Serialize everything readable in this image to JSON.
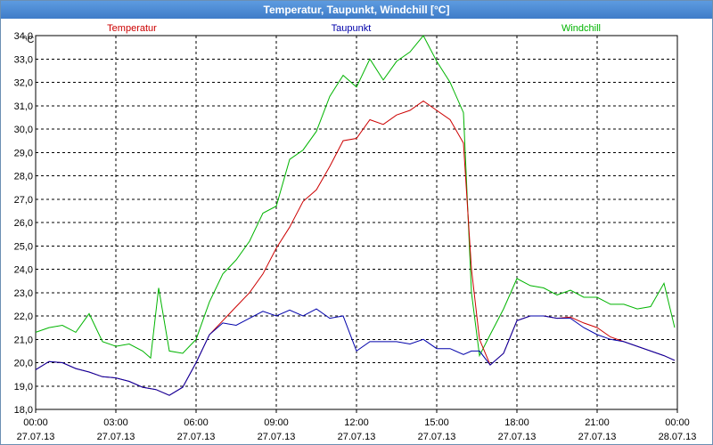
{
  "window": {
    "title": "Temperatur, Taupunkt, Windchill [°C]"
  },
  "chart_data": {
    "type": "line",
    "title": "Temperatur, Taupunkt, Windchill [°C]",
    "ylabel": "°C",
    "xlim": [
      "00:00",
      "24:00"
    ],
    "ylim": [
      18.0,
      34.0
    ],
    "grid": true,
    "legend_position": "top",
    "y_ticks": [
      "18,0",
      "19,0",
      "20,0",
      "21,0",
      "22,0",
      "23,0",
      "24,0",
      "25,0",
      "26,0",
      "27,0",
      "28,0",
      "29,0",
      "30,0",
      "31,0",
      "32,0",
      "33,0",
      "34,0"
    ],
    "x_ticks": [
      {
        "time": "00:00",
        "date": "27.07.13"
      },
      {
        "time": "03:00",
        "date": "27.07.13"
      },
      {
        "time": "06:00",
        "date": "27.07.13"
      },
      {
        "time": "09:00",
        "date": "27.07.13"
      },
      {
        "time": "12:00",
        "date": "27.07.13"
      },
      {
        "time": "15:00",
        "date": "27.07.13"
      },
      {
        "time": "18:00",
        "date": "27.07.13"
      },
      {
        "time": "21:00",
        "date": "27.07.13"
      },
      {
        "time": "00:00",
        "date": "28.07.13"
      }
    ],
    "colors": {
      "Temperatur": "#cc0000",
      "Taupunkt": "#0000aa",
      "Windchill": "#00b400"
    },
    "series": [
      {
        "name": "Temperatur",
        "x": [
          0,
          0.5,
          1.0,
          1.5,
          2.0,
          2.5,
          3.0,
          3.5,
          4.0,
          4.5,
          5.0,
          5.5,
          6.0,
          6.5,
          7.0,
          7.5,
          8.0,
          8.5,
          9.0,
          9.5,
          10.0,
          10.5,
          11.0,
          11.5,
          12.0,
          12.5,
          13.0,
          13.5,
          14.0,
          14.5,
          15.0,
          15.5,
          16.0,
          16.3,
          16.6,
          17.0,
          17.5,
          18.0,
          18.5,
          19.0,
          19.5,
          20.0,
          20.5,
          21.0,
          21.5,
          22.0,
          22.5,
          23.0,
          23.5,
          23.9
        ],
        "y": [
          19.7,
          20.05,
          20.0,
          19.75,
          19.6,
          19.4,
          19.35,
          19.2,
          18.95,
          18.85,
          18.6,
          18.95,
          20.0,
          21.2,
          21.8,
          22.4,
          23.0,
          23.8,
          24.9,
          25.8,
          26.9,
          27.4,
          28.4,
          29.5,
          29.6,
          30.4,
          30.2,
          30.6,
          30.8,
          31.2,
          30.8,
          30.4,
          29.4,
          24.0,
          21.0,
          19.9,
          20.4,
          21.8,
          22.0,
          22.0,
          21.9,
          21.95,
          21.7,
          21.5,
          21.1,
          20.9,
          20.7,
          20.5,
          20.3,
          20.1
        ],
        "values_note": "approx"
      },
      {
        "name": "Taupunkt",
        "x": [
          0,
          0.5,
          1.0,
          1.5,
          2.0,
          2.5,
          3.0,
          3.5,
          4.0,
          4.5,
          5.0,
          5.5,
          6.0,
          6.5,
          7.0,
          7.5,
          8.0,
          8.5,
          9.0,
          9.5,
          10.0,
          10.5,
          11.0,
          11.5,
          12.0,
          12.5,
          13.0,
          13.5,
          14.0,
          14.5,
          15.0,
          15.5,
          16.0,
          16.3,
          16.6,
          17.0,
          17.5,
          18.0,
          18.5,
          19.0,
          19.5,
          20.0,
          20.5,
          21.0,
          21.5,
          22.0,
          22.5,
          23.0,
          23.5,
          23.9
        ],
        "y": [
          19.7,
          20.05,
          20.0,
          19.75,
          19.6,
          19.4,
          19.35,
          19.2,
          18.95,
          18.85,
          18.6,
          18.95,
          20.0,
          21.2,
          21.7,
          21.6,
          21.9,
          22.2,
          22.0,
          22.25,
          22.0,
          22.3,
          21.9,
          22.0,
          20.5,
          20.9,
          20.9,
          20.9,
          20.8,
          21.0,
          20.6,
          20.6,
          20.35,
          20.5,
          20.5,
          19.9,
          20.4,
          21.8,
          22.0,
          22.0,
          21.9,
          21.9,
          21.5,
          21.2,
          21.0,
          20.9,
          20.7,
          20.5,
          20.3,
          20.1
        ]
      },
      {
        "name": "Windchill",
        "x": [
          0,
          0.5,
          1.0,
          1.5,
          2.0,
          2.5,
          3.0,
          3.5,
          4.0,
          4.3,
          4.6,
          5.0,
          5.5,
          6.0,
          6.5,
          7.0,
          7.5,
          8.0,
          8.5,
          9.0,
          9.5,
          10.0,
          10.5,
          11.0,
          11.5,
          12.0,
          12.5,
          13.0,
          13.5,
          14.0,
          14.5,
          15.0,
          15.5,
          16.0,
          16.3,
          16.6,
          17.0,
          17.5,
          18.0,
          18.5,
          19.0,
          19.5,
          20.0,
          20.5,
          21.0,
          21.5,
          22.0,
          22.5,
          23.0,
          23.5,
          23.9
        ],
        "y": [
          21.3,
          21.5,
          21.6,
          21.3,
          22.1,
          20.9,
          20.7,
          20.8,
          20.5,
          20.2,
          23.2,
          20.5,
          20.4,
          21.0,
          22.6,
          23.8,
          24.4,
          25.2,
          26.4,
          26.7,
          28.7,
          29.1,
          29.9,
          31.4,
          32.3,
          31.8,
          33.0,
          32.1,
          32.9,
          33.3,
          34.0,
          32.9,
          32.0,
          30.7,
          23.0,
          20.3,
          21.2,
          22.3,
          23.6,
          23.3,
          23.2,
          22.9,
          23.1,
          22.8,
          22.8,
          22.5,
          22.5,
          22.3,
          22.4,
          23.4,
          21.5
        ]
      }
    ]
  }
}
